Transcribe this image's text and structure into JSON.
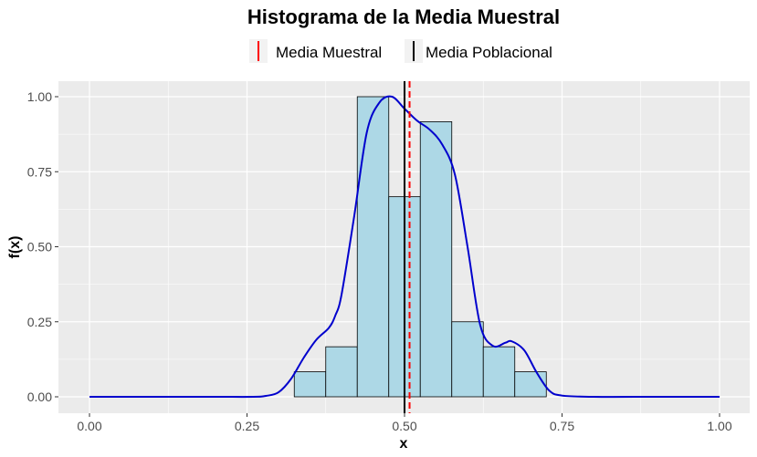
{
  "chart_data": {
    "type": "bar",
    "title": "Histograma de la Media Muestral",
    "xlabel": "x",
    "ylabel": "f(x)",
    "xlim": [
      0,
      1
    ],
    "ylim": [
      0,
      1
    ],
    "xticks": [
      "0.00",
      "0.25",
      "0.50",
      "0.75",
      "1.00"
    ],
    "yticks": [
      "0.00",
      "0.25",
      "0.50",
      "0.75",
      "1.00"
    ],
    "grid": true,
    "legend_position": "top",
    "legend": [
      {
        "label": "Media Muestral",
        "color": "#ff0000",
        "style": "dashed"
      },
      {
        "label": "Media Poblacional",
        "color": "#000000",
        "style": "solid"
      }
    ],
    "histogram": {
      "fill": "#add8e6",
      "stroke": "#000000",
      "bins": [
        {
          "x0": 0.325,
          "x1": 0.375,
          "value": 0.0833
        },
        {
          "x0": 0.375,
          "x1": 0.425,
          "value": 0.1667
        },
        {
          "x0": 0.425,
          "x1": 0.475,
          "value": 1.0
        },
        {
          "x0": 0.475,
          "x1": 0.525,
          "value": 0.6667
        },
        {
          "x0": 0.525,
          "x1": 0.575,
          "value": 0.9167
        },
        {
          "x0": 0.575,
          "x1": 0.625,
          "value": 0.25
        },
        {
          "x0": 0.625,
          "x1": 0.675,
          "value": 0.1667
        },
        {
          "x0": 0.675,
          "x1": 0.725,
          "value": 0.0833
        }
      ]
    },
    "density": {
      "color": "#0000cd",
      "x": [
        0.0,
        0.1,
        0.2,
        0.26,
        0.28,
        0.3,
        0.32,
        0.34,
        0.36,
        0.38,
        0.39,
        0.4,
        0.42,
        0.44,
        0.46,
        0.48,
        0.5,
        0.52,
        0.54,
        0.56,
        0.58,
        0.6,
        0.62,
        0.64,
        0.66,
        0.67,
        0.69,
        0.71,
        0.73,
        0.75,
        0.8,
        0.9,
        1.0
      ],
      "y": [
        0.0,
        0.0,
        0.0,
        0.0,
        0.003,
        0.015,
        0.06,
        0.13,
        0.19,
        0.23,
        0.27,
        0.34,
        0.6,
        0.88,
        0.98,
        1.0,
        0.96,
        0.92,
        0.89,
        0.84,
        0.74,
        0.5,
        0.24,
        0.17,
        0.18,
        0.185,
        0.155,
        0.08,
        0.02,
        0.004,
        0.0,
        0.0,
        0.0
      ]
    },
    "sample_mean": 0.508,
    "population_mean": 0.5
  }
}
